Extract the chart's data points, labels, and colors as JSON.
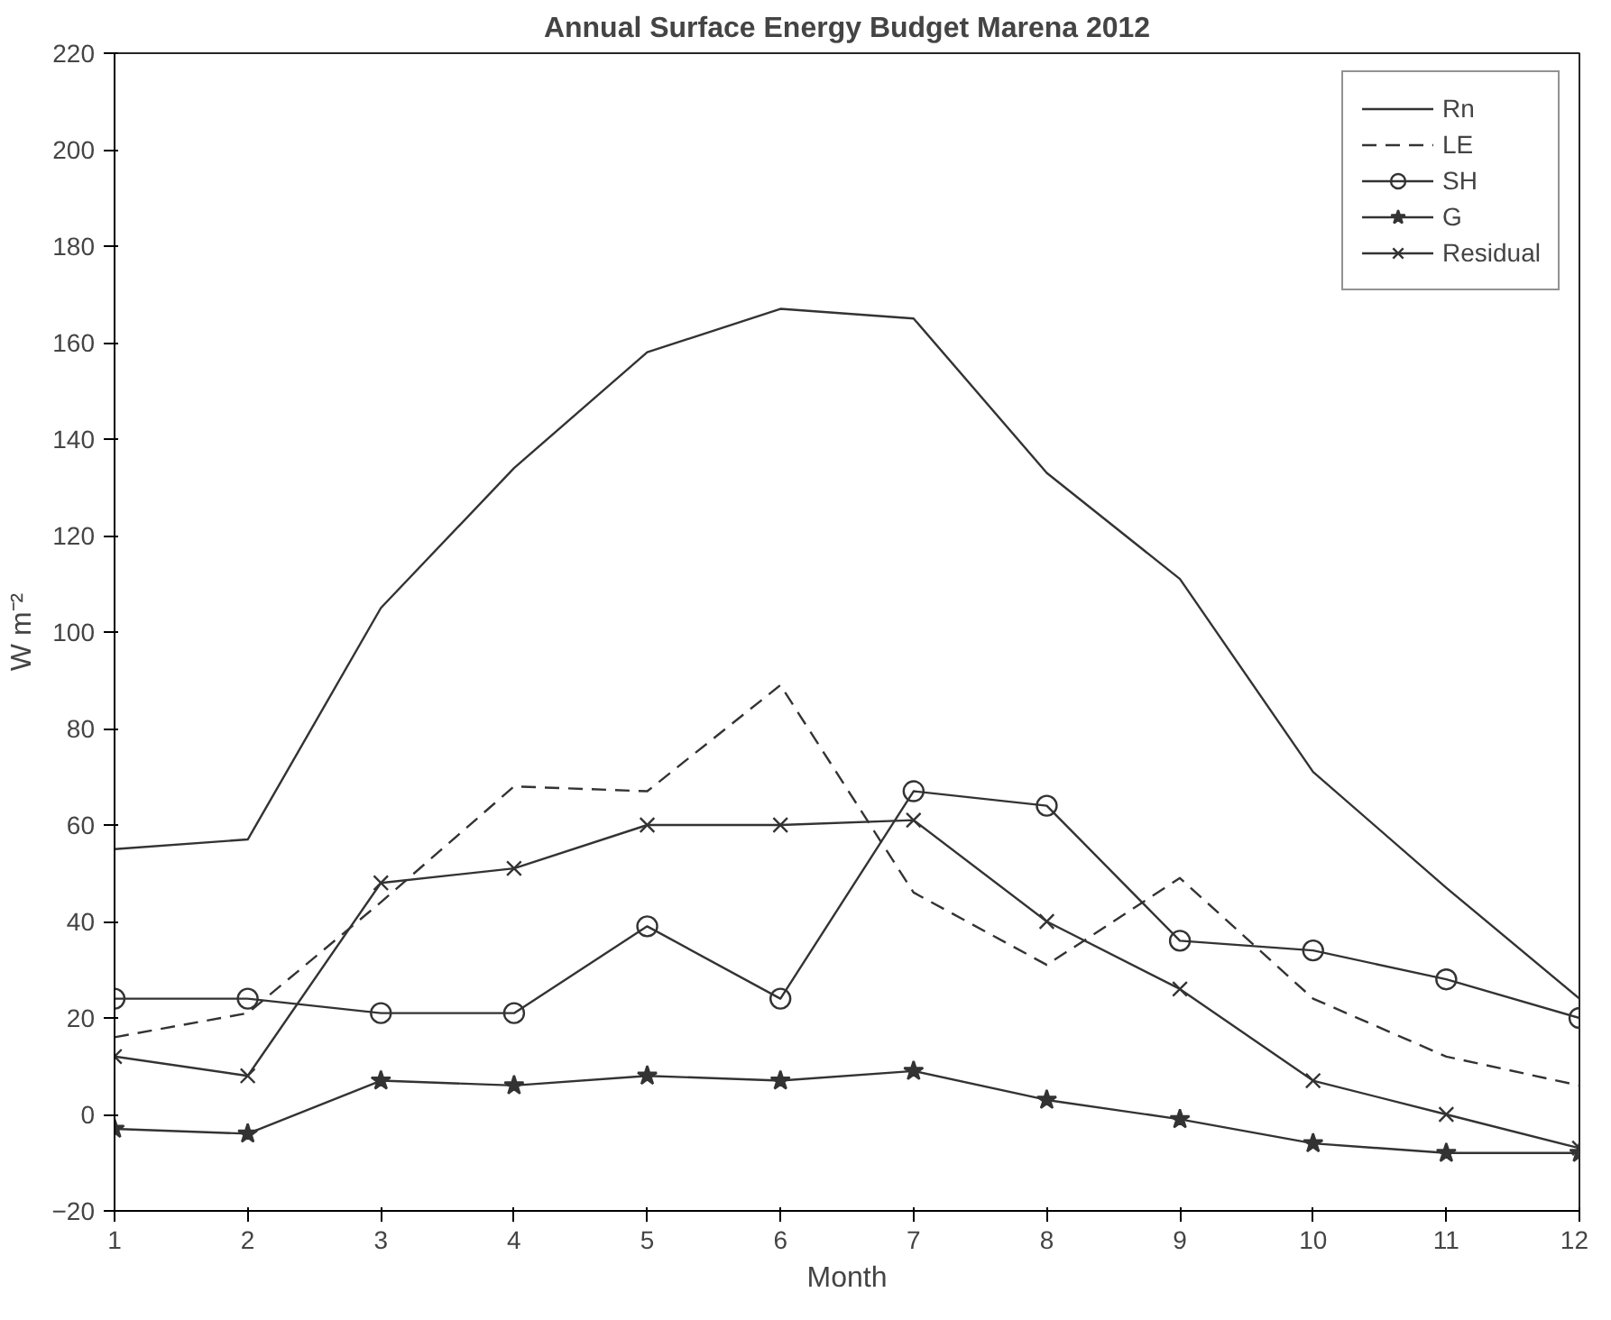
{
  "chart_data": {
    "type": "line",
    "title": "Annual Surface Energy Budget Marena 2012",
    "xlabel": "Month",
    "ylabel": "W m⁻²",
    "x": [
      1,
      2,
      3,
      4,
      5,
      6,
      7,
      8,
      9,
      10,
      11,
      12
    ],
    "xlim": [
      1,
      12
    ],
    "xticks": [
      1,
      2,
      3,
      4,
      5,
      6,
      7,
      8,
      9,
      10,
      11,
      12
    ],
    "ylim": [
      -20,
      220
    ],
    "yticks": [
      -20,
      0,
      20,
      40,
      60,
      80,
      100,
      120,
      140,
      160,
      180,
      200,
      220
    ],
    "grid": false,
    "legend": "top right",
    "series": [
      {
        "name": "Rn",
        "color": "#333333",
        "marker": "none",
        "line_style": "solid",
        "values": [
          55,
          57,
          105,
          134,
          158,
          167,
          165,
          133,
          111,
          71,
          47,
          24
        ]
      },
      {
        "name": "LE",
        "color": "#333333",
        "marker": "none",
        "line_style": "dashed",
        "values": [
          16,
          21,
          44,
          68,
          67,
          89,
          46,
          31,
          49,
          24,
          12,
          6
        ]
      },
      {
        "name": "SH",
        "color": "#333333",
        "marker": "circle",
        "line_style": "solid",
        "values": [
          24,
          24,
          21,
          21,
          39,
          24,
          67,
          64,
          36,
          34,
          28,
          20
        ]
      },
      {
        "name": "G",
        "color": "#333333",
        "marker": "star",
        "line_style": "solid",
        "values": [
          -3,
          -4,
          7,
          6,
          8,
          7,
          9,
          3,
          -1,
          -6,
          -8,
          -8
        ]
      },
      {
        "name": "Residual",
        "color": "#333333",
        "marker": "cross",
        "line_style": "solid",
        "values": [
          12,
          8,
          48,
          51,
          60,
          60,
          61,
          40,
          26,
          7,
          0,
          -7
        ]
      }
    ]
  }
}
